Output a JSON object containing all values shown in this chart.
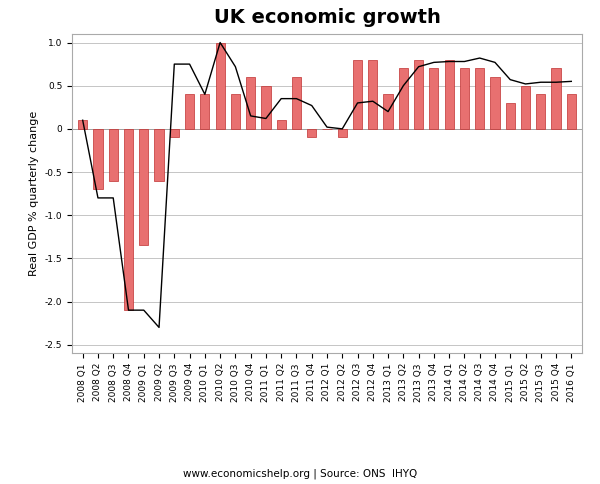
{
  "title": "UK economic growth",
  "ylabel": "Real GDP % quarterly change",
  "footnote": "www.economicshelp.org | Source: ONS  IHYQ",
  "ylim": [
    -2.6,
    1.1
  ],
  "yticks": [
    -2.5,
    -2.0,
    -1.5,
    -1.0,
    -0.5,
    0.0,
    0.5,
    1.0
  ],
  "labels": [
    "2008 Q1",
    "2008 Q2",
    "2008 Q3",
    "2008 Q4",
    "2009 Q1",
    "2009 Q2",
    "2009 Q3",
    "2009 Q4",
    "2010 Q1",
    "2010 Q2",
    "2010 Q3",
    "2010 Q4",
    "2011 Q1",
    "2011 Q2",
    "2011 Q3",
    "2011 Q4",
    "2012 Q1",
    "2012 Q2",
    "2012 Q3",
    "2012 Q4",
    "2013 Q1",
    "2013 Q2",
    "2013 Q3",
    "2013 Q4",
    "2014 Q1",
    "2014 Q2",
    "2014 Q3",
    "2014 Q4",
    "2015 Q1",
    "2015 Q2",
    "2015 Q3",
    "2015 Q4",
    "2016 Q1"
  ],
  "bar_values": [
    0.1,
    -0.7,
    -0.6,
    -2.1,
    -1.35,
    -0.6,
    -0.1,
    0.4,
    0.4,
    1.0,
    0.4,
    0.6,
    0.5,
    0.1,
    0.6,
    -0.1,
    0.0,
    -0.1,
    0.8,
    0.8,
    0.4,
    0.7,
    0.8,
    0.7,
    0.8,
    0.7,
    0.7,
    0.6,
    0.3,
    0.5,
    0.4,
    0.7,
    0.4
  ],
  "line_values": [
    0.1,
    -0.8,
    -0.8,
    -2.1,
    -2.1,
    -2.3,
    0.75,
    0.75,
    0.4,
    1.0,
    0.72,
    0.15,
    0.12,
    0.35,
    0.35,
    0.27,
    0.02,
    0.0,
    0.3,
    0.32,
    0.2,
    0.5,
    0.72,
    0.77,
    0.78,
    0.78,
    0.82,
    0.77,
    0.57,
    0.52,
    0.54,
    0.54,
    0.55
  ],
  "bar_color": "#E87070",
  "bar_edge_color": "#C03030",
  "line_color": "black",
  "background_color": "#FFFFFF",
  "grid_color": "#BBBBBB",
  "title_fontsize": 14,
  "ylabel_fontsize": 8,
  "tick_fontsize": 6.5,
  "footnote_fontsize": 7.5,
  "fig_width": 6.0,
  "fig_height": 4.84,
  "dpi": 100
}
